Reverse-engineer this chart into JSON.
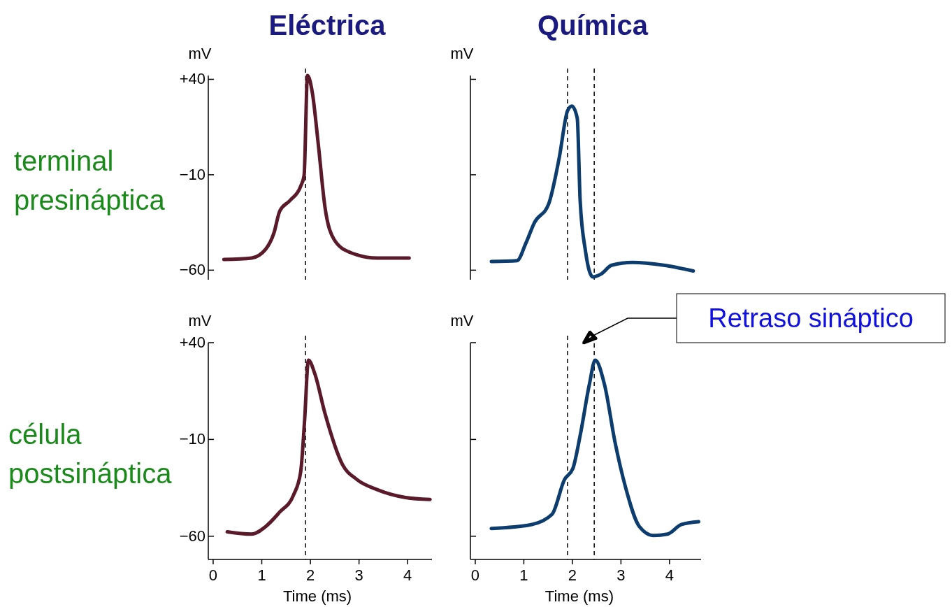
{
  "chart_data": [
    {
      "type": "line",
      "title": "Eléctrica",
      "ylabel": "mV",
      "annotations": [
        "terminal presináptica"
      ],
      "tick_labels": "y",
      "xticks": [
        0,
        1,
        2,
        3,
        4
      ],
      "ylim": [
        -65,
        42
      ],
      "yticks": [
        {
          "value": 40,
          "label": "+40"
        },
        {
          "value": -10,
          "label": "−10"
        },
        {
          "value": -60,
          "label": "−60"
        }
      ],
      "ref_lines": [
        {
          "axis": "x",
          "value": 1.9,
          "line_style": "dashed",
          "color": "#000000"
        }
      ],
      "series": [
        {
          "color": "#5a1a2a",
          "x": [
            0.22,
            0.79,
            1.08,
            1.25,
            1.37,
            1.58,
            1.8,
            1.87,
            1.94,
            2.04,
            2.16,
            2.3,
            2.49,
            2.81,
            3.38,
            4.03
          ],
          "values": [
            -54.4,
            -53.6,
            -49,
            -40.5,
            -29,
            -23.5,
            -16,
            -10.4,
            42,
            33,
            6.5,
            -27,
            -44,
            -50.6,
            -53.6,
            -53.6
          ]
        }
      ]
    },
    {
      "type": "line",
      "title": "Química",
      "ylabel": "mV",
      "tick_labels": false,
      "xticks": [
        0,
        1,
        2,
        3,
        4
      ],
      "ylim": [
        -65,
        42
      ],
      "yticks": [
        {
          "value": 40,
          "label": null
        },
        {
          "value": -10,
          "label": null
        },
        {
          "value": -60,
          "label": null
        }
      ],
      "ref_lines": [
        {
          "axis": "x",
          "value": 1.9,
          "line_style": "dashed",
          "color": "#000000"
        },
        {
          "axis": "x",
          "value": 2.45,
          "line_style": "dashed",
          "color": "#000000"
        }
      ],
      "series": [
        {
          "color": "#0d3c6e",
          "x": [
            0.33,
            0.86,
            1.04,
            1.22,
            1.51,
            1.73,
            1.9,
            1.99,
            2.1,
            2.16,
            2.27,
            2.42,
            2.59,
            2.81,
            3.24,
            3.88,
            4.49
          ],
          "values": [
            -55.5,
            -55,
            -46,
            -35,
            -25.4,
            -1,
            23.5,
            26,
            19.7,
            -23.5,
            -50,
            -63.5,
            -62,
            -57.4,
            -55.9,
            -57.4,
            -60.4
          ]
        }
      ]
    },
    {
      "type": "line",
      "ylabel": "mV",
      "xlabel": "Time (ms)",
      "annotations": [
        "célula postsináptica"
      ],
      "xlim": [
        -0.1,
        4.5
      ],
      "xticks": [
        0,
        1,
        2,
        3,
        4
      ],
      "ylim": [
        -72,
        40
      ],
      "yticks": [
        {
          "value": 40,
          "label": "+40"
        },
        {
          "value": -10,
          "label": "−10"
        },
        {
          "value": -60,
          "label": "−60"
        }
      ],
      "ref_lines": [
        {
          "axis": "x",
          "value": 1.9,
          "line_style": "dashed",
          "color": "#000000"
        }
      ],
      "series": [
        {
          "color": "#5a1a2a",
          "x": [
            0.29,
            0.79,
            1.08,
            1.37,
            1.65,
            1.8,
            1.88,
            1.96,
            2.09,
            2.3,
            2.66,
            2.95,
            3.38,
            3.96,
            4.46
          ],
          "values": [
            -57.7,
            -58.9,
            -55,
            -47.5,
            -38.9,
            -26.8,
            -0.4,
            31,
            24,
            3.4,
            -23,
            -30.6,
            -36,
            -40,
            -41
          ]
        }
      ]
    },
    {
      "type": "line",
      "ylabel": "mV",
      "xlabel": "Time (ms)",
      "tick_labels": "x",
      "annotations": [
        "Retraso sináptico"
      ],
      "xlim": [
        -0.1,
        4.65
      ],
      "xticks": [
        0,
        1,
        2,
        3,
        4
      ],
      "ylim": [
        -72,
        40
      ],
      "yticks": [
        {
          "value": 40,
          "label": null
        },
        {
          "value": -10,
          "label": null
        },
        {
          "value": -60,
          "label": null
        }
      ],
      "ref_lines": [
        {
          "axis": "x",
          "value": 1.9,
          "line_style": "dashed",
          "color": "#000000"
        },
        {
          "axis": "x",
          "value": 2.45,
          "line_style": "dashed",
          "color": "#000000"
        }
      ],
      "series": [
        {
          "color": "#0d3c6e",
          "x": [
            0.33,
            1.15,
            1.58,
            1.84,
            2.01,
            2.16,
            2.35,
            2.47,
            2.66,
            2.88,
            3.09,
            3.38,
            3.67,
            3.96,
            4.24,
            4.6
          ],
          "values": [
            -56,
            -54,
            -48.7,
            -30.6,
            -25,
            -8,
            18.5,
            31,
            18.5,
            -11.7,
            -34.3,
            -55,
            -59.6,
            -58.9,
            -54,
            -52.5
          ]
        }
      ]
    }
  ]
}
